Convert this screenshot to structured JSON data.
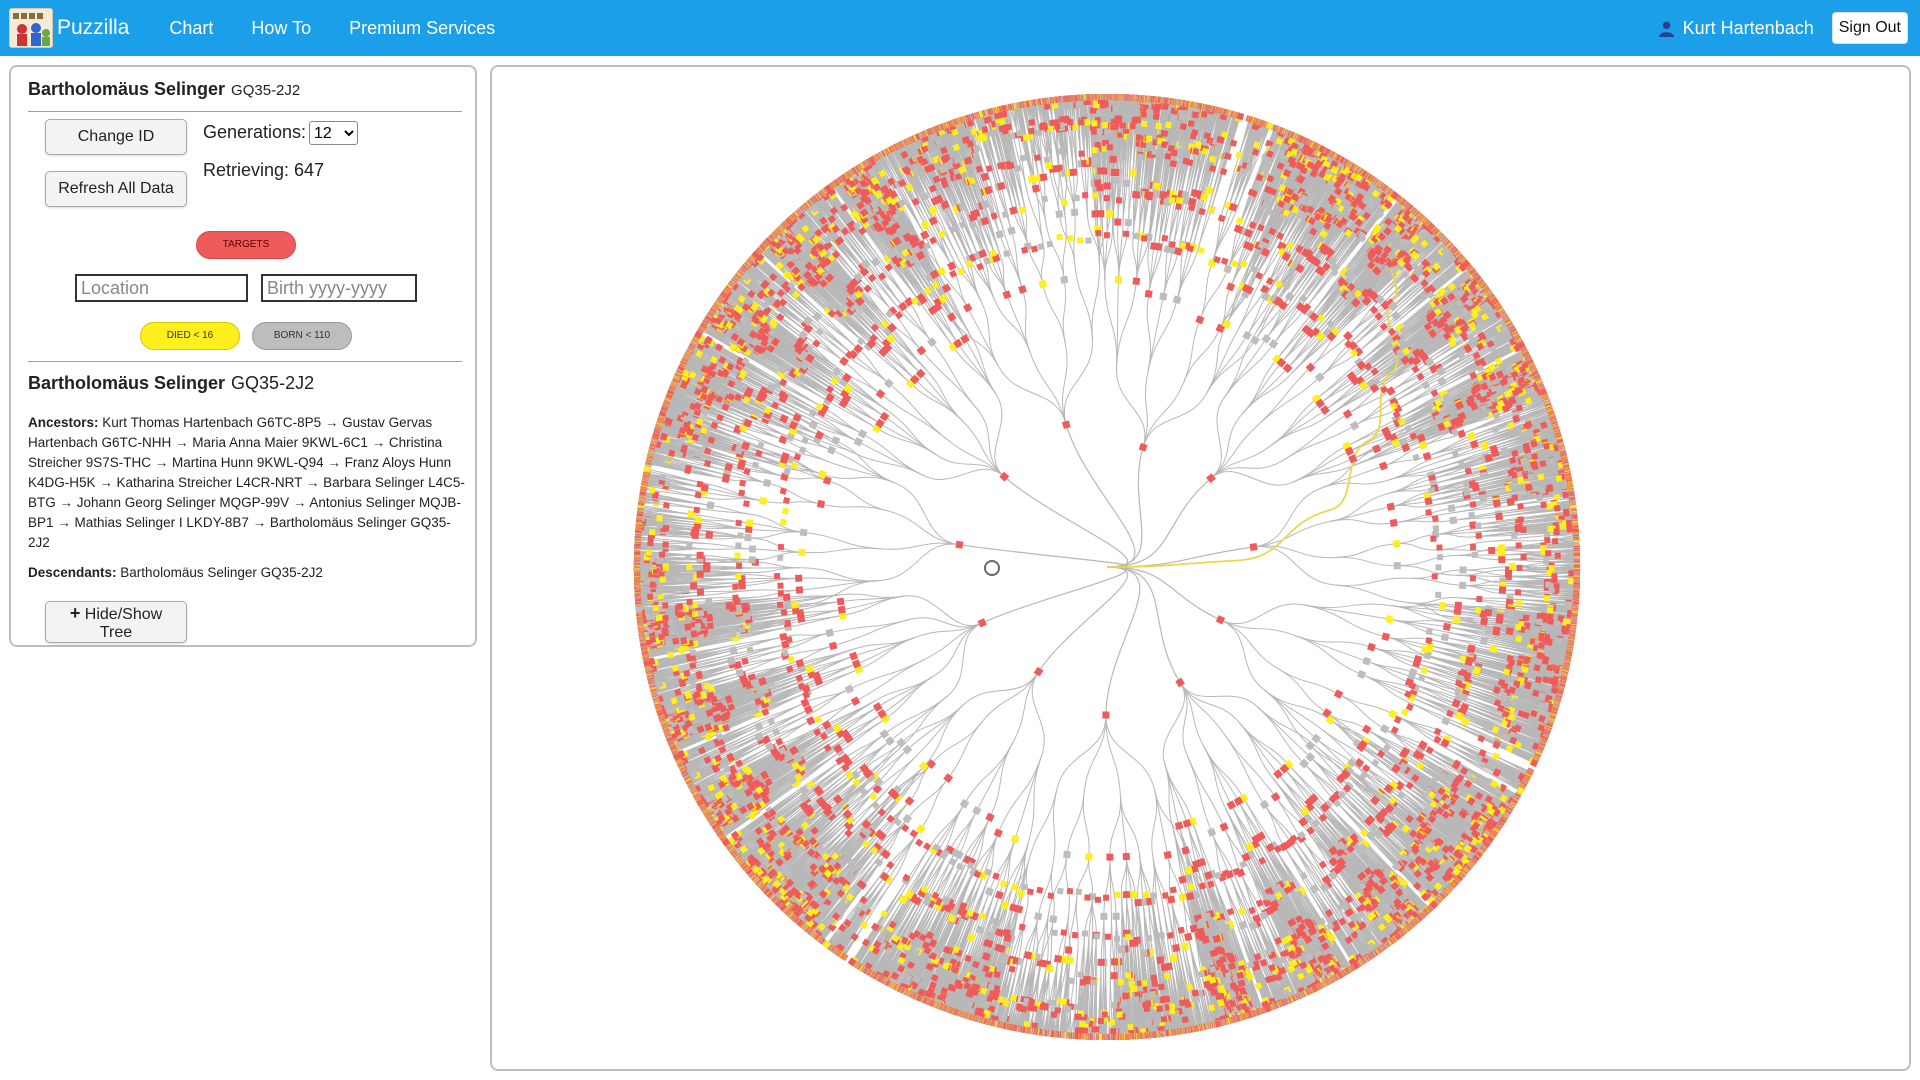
{
  "app": {
    "brand": "Puzzilla"
  },
  "nav": {
    "items": [
      {
        "label": "Chart"
      },
      {
        "label": "How To"
      },
      {
        "label": "Premium Services"
      }
    ]
  },
  "user": {
    "name": "Kurt Hartenbach",
    "signout_label": "Sign Out"
  },
  "panel": {
    "person_name": "Bartholomäus Selinger",
    "person_id": "GQ35-2J2",
    "change_id_label": "Change ID",
    "refresh_label": "Refresh All Data",
    "generations_label": "Generations:",
    "generations_value": "12",
    "retrieving_text": "Retrieving: 647",
    "targets_label": "TARGETS",
    "location_placeholder": "Location",
    "birth_placeholder": "Birth yyyy-yyyy",
    "died_label": "DIED < 16",
    "born_label": "BORN < 110",
    "selected_name": "Bartholomäus Selinger",
    "selected_id": "GQ35-2J2",
    "ancestors_label": "Ancestors:",
    "ancestors_text": "Kurt Thomas Hartenbach G6TC-8P5 → Gustav Gervas Hartenbach G6TC-NHH → Maria Anna Maier 9KWL-6C1 → Christina Streicher 9S7S-THC → Martina Hunn 9KWL-Q94 → Franz Aloys Hunn K4DG-H5K → Katharina Streicher L4CR-NRT → Barbara Selinger L4C5-BTG → Johann Georg Selinger MQGP-99V → Antonius Selinger MQJB-BP1 → Mathias Selinger I LKDY-8B7 → Bartholomäus Selinger GQ35-2J2",
    "descendants_label": "Descendants:",
    "descendants_text": "Bartholomäus Selinger GQ35-2J2",
    "hide_show_label": "Hide/Show Tree"
  },
  "colors": {
    "header": "#1a9fe8",
    "target": "#ef5b5b",
    "died": "#ffef1c",
    "born": "#bdbdbd",
    "link": "#b8b8b8",
    "highlight": "#e8d84a"
  },
  "icons": {
    "user": "user-icon",
    "logo": "puzzilla-logo",
    "plus": "plus-icon"
  }
}
